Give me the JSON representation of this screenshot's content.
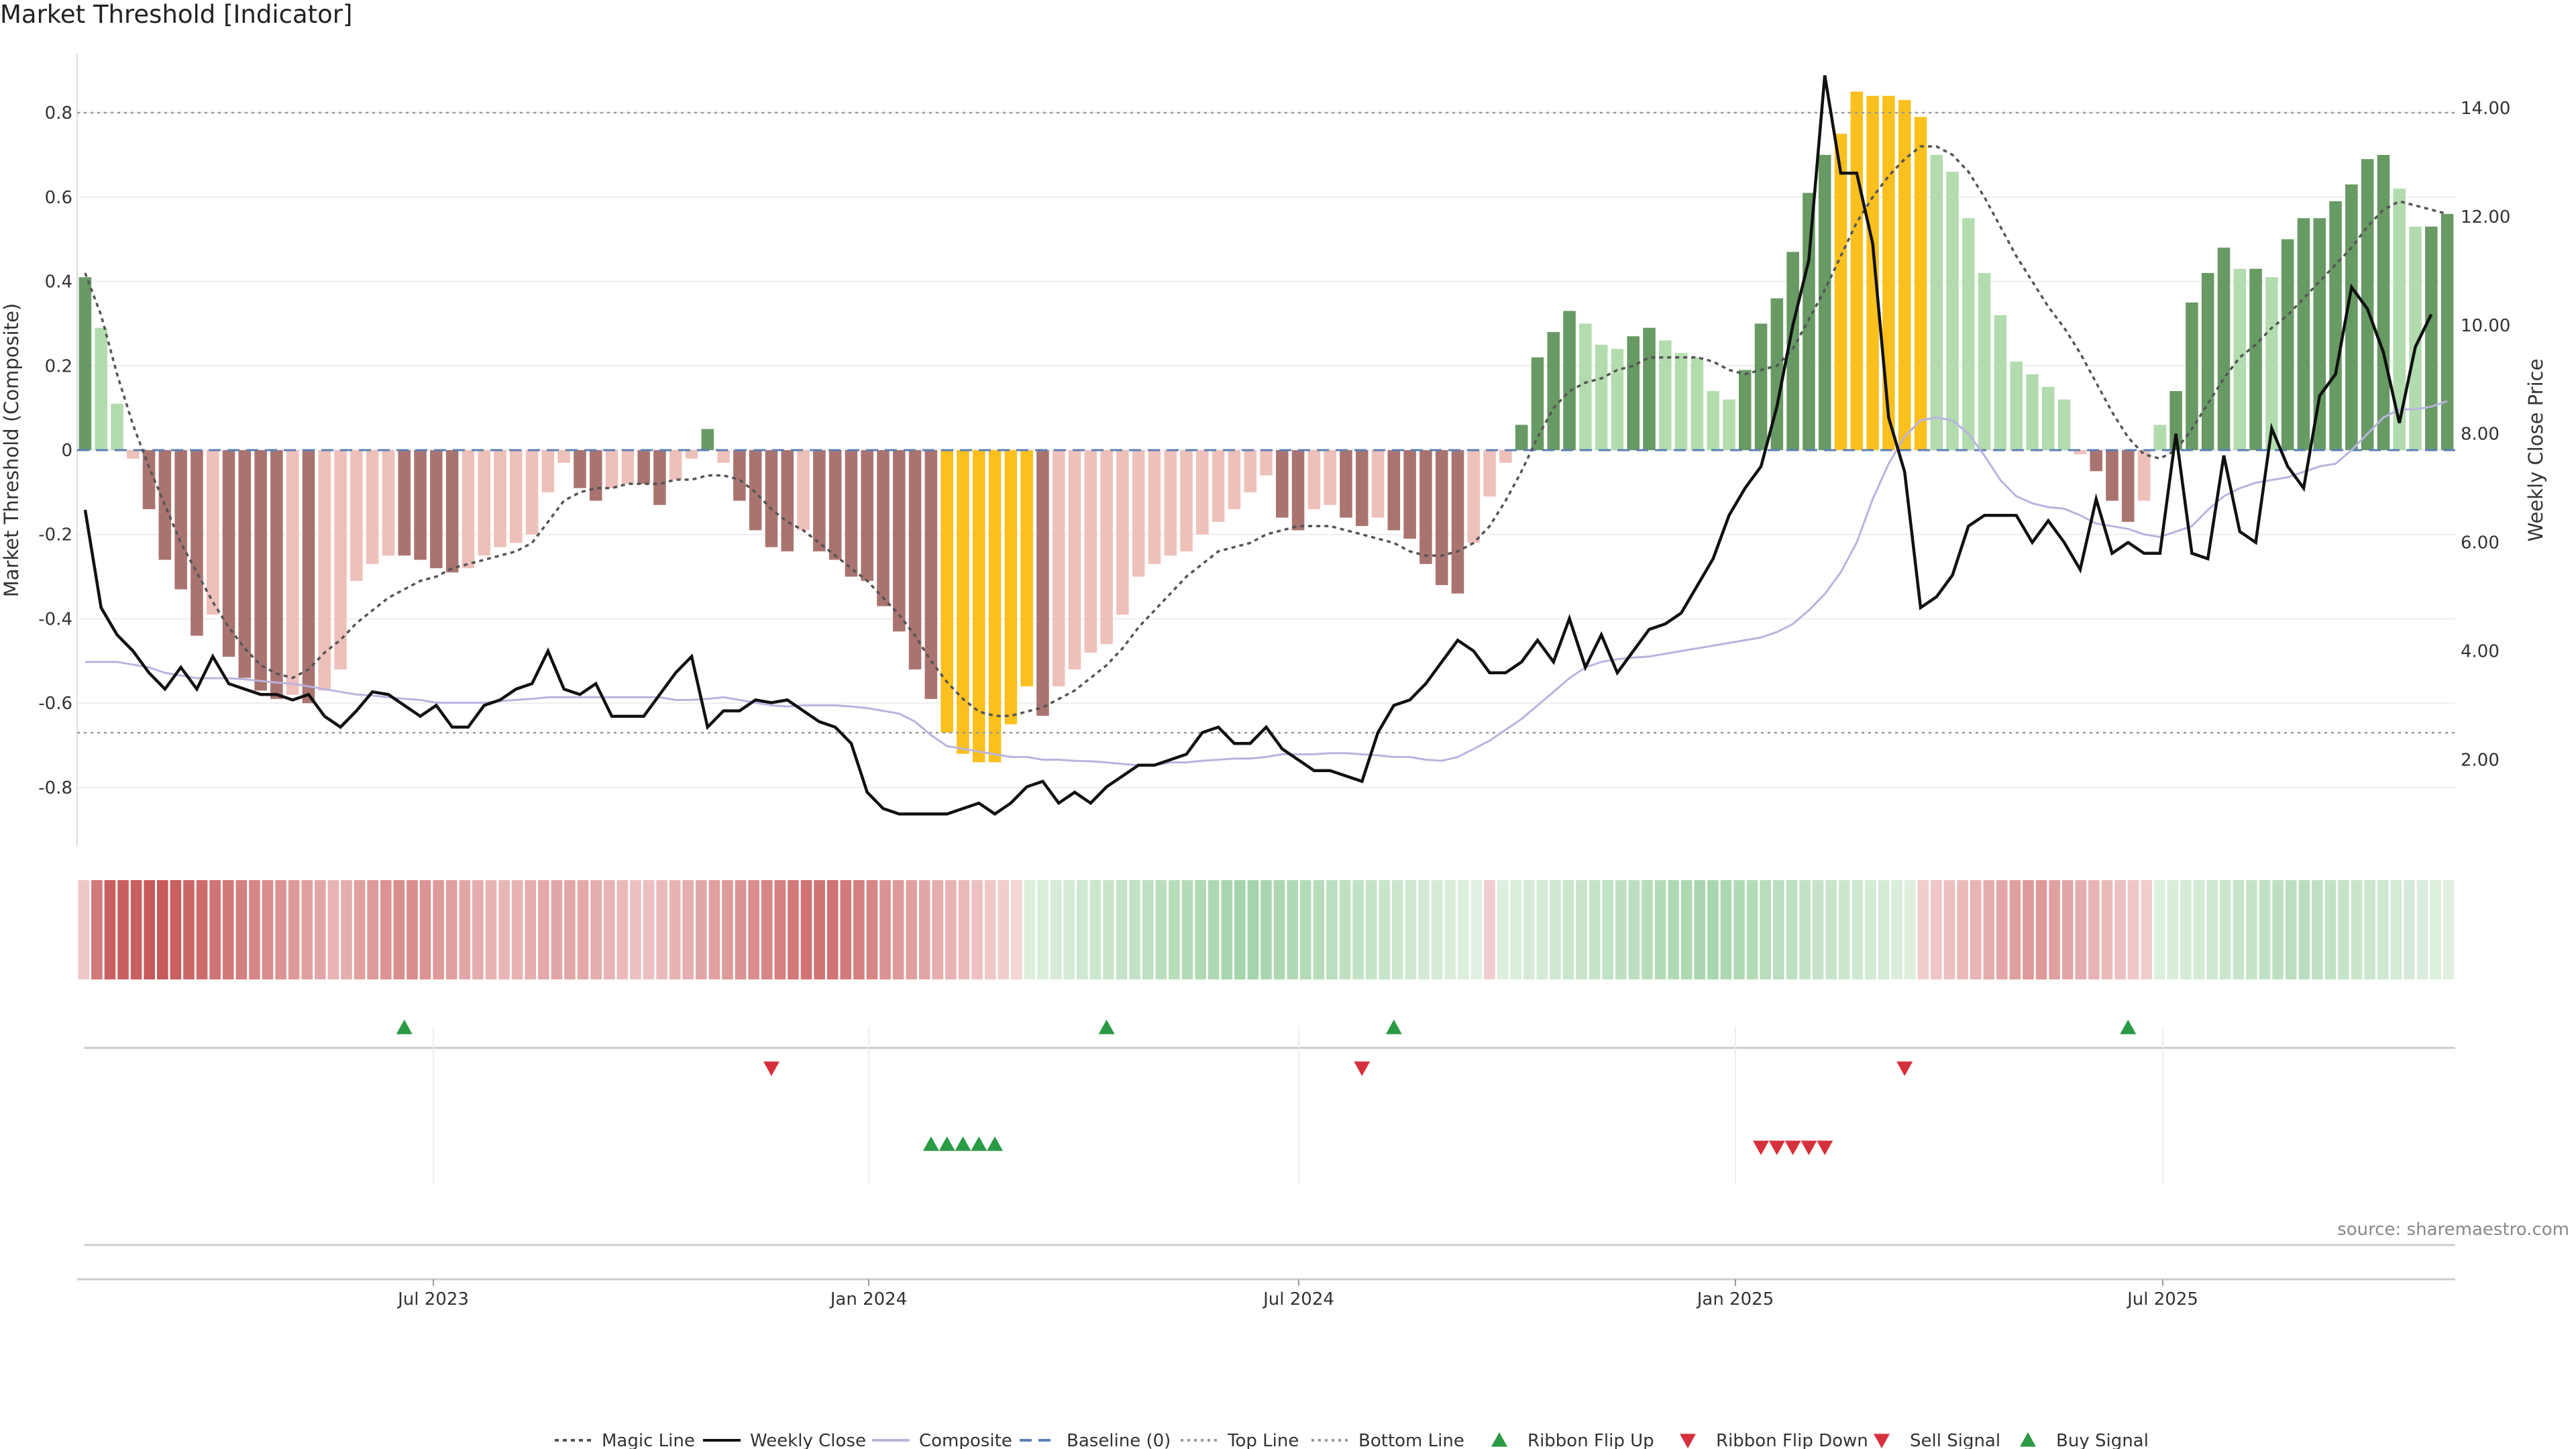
{
  "title": "Market Threshold [Indicator]",
  "source": "source: sharemaestro.com",
  "chart_data": {
    "type": "bar",
    "title": "Market Threshold [Indicator]",
    "ylabel": "Market Threshold (Composite)",
    "y2label": "Weekly Close Price",
    "ylim": [
      -0.94,
      0.94
    ],
    "y2lim": [
      0.4,
      15.0
    ],
    "yticks": [
      "0.8",
      "0.6",
      "0.4",
      "0.2",
      "0",
      "-0.2",
      "-0.4",
      "-0.6",
      "-0.8"
    ],
    "y2ticks": [
      "14.00",
      "12.00",
      "10.00",
      "8.00",
      "6.00",
      "4.00",
      "2.00"
    ],
    "xticks": [
      "Jul 2023",
      "Jan 2024",
      "Jul 2024",
      "Jan 2025",
      "Jul 2025"
    ],
    "top_line": 0.8,
    "bottom_line": -0.67,
    "grid": true,
    "legend_position": "bottom-center",
    "colors": {
      "bear_strong": "#a97470",
      "bear_light": "#eec0ba",
      "bull_strong": "#689a64",
      "bull_light": "#b2dcae",
      "extreme": "#fbc01e",
      "magic": "#555555",
      "close": "#111111",
      "composite": "#b9b3e0",
      "baseline": "#5b7fb5",
      "buy": "#2a9a44",
      "sell": "#d6303d"
    },
    "composite_bars": [
      0.41,
      0.29,
      0.11,
      -0.02,
      -0.14,
      -0.26,
      -0.33,
      -0.44,
      -0.39,
      -0.49,
      -0.54,
      -0.57,
      -0.59,
      -0.58,
      -0.6,
      -0.57,
      -0.52,
      -0.31,
      -0.27,
      -0.25,
      -0.25,
      -0.26,
      -0.28,
      -0.29,
      -0.28,
      -0.25,
      -0.23,
      -0.22,
      -0.2,
      -0.1,
      -0.03,
      -0.09,
      -0.12,
      -0.09,
      -0.08,
      -0.08,
      -0.13,
      -0.07,
      -0.02,
      0.05,
      -0.03,
      -0.12,
      -0.19,
      -0.23,
      -0.24,
      -0.19,
      -0.24,
      -0.26,
      -0.3,
      -0.31,
      -0.37,
      -0.43,
      -0.52,
      -0.59,
      -0.67,
      -0.72,
      -0.74,
      -0.74,
      -0.65,
      -0.56,
      -0.63,
      -0.56,
      -0.52,
      -0.48,
      -0.46,
      -0.39,
      -0.3,
      -0.27,
      -0.25,
      -0.24,
      -0.2,
      -0.17,
      -0.14,
      -0.1,
      -0.06,
      -0.16,
      -0.19,
      -0.14,
      -0.13,
      -0.16,
      -0.18,
      -0.16,
      -0.19,
      -0.21,
      -0.27,
      -0.32,
      -0.34,
      -0.22,
      -0.11,
      -0.03,
      0.06,
      0.22,
      0.28,
      0.33,
      0.3,
      0.25,
      0.24,
      0.27,
      0.29,
      0.26,
      0.23,
      0.22,
      0.14,
      0.12,
      0.19,
      0.3,
      0.36,
      0.47,
      0.61,
      0.7,
      0.75,
      0.85,
      0.84,
      0.84,
      0.83,
      0.79,
      0.7,
      0.66,
      0.55,
      0.42,
      0.32,
      0.21,
      0.18,
      0.15,
      0.12,
      -0.01,
      -0.05,
      -0.12,
      -0.17,
      -0.12,
      0.06,
      0.14,
      0.35,
      0.42,
      0.48,
      0.43,
      0.43,
      0.41,
      0.5,
      0.55,
      0.55,
      0.59,
      0.63,
      0.69,
      0.7,
      0.62,
      0.53,
      0.53,
      0.56
    ],
    "extreme_bars": [
      54,
      55,
      56,
      57,
      58,
      59,
      110,
      111,
      112,
      113,
      114,
      115
    ],
    "magic_line": [
      0.42,
      0.32,
      0.18,
      0.06,
      -0.04,
      -0.13,
      -0.22,
      -0.29,
      -0.36,
      -0.42,
      -0.47,
      -0.51,
      -0.53,
      -0.54,
      -0.52,
      -0.48,
      -0.45,
      -0.41,
      -0.38,
      -0.35,
      -0.33,
      -0.31,
      -0.3,
      -0.28,
      -0.27,
      -0.26,
      -0.25,
      -0.24,
      -0.22,
      -0.17,
      -0.12,
      -0.1,
      -0.09,
      -0.09,
      -0.08,
      -0.08,
      -0.08,
      -0.07,
      -0.07,
      -0.06,
      -0.06,
      -0.07,
      -0.1,
      -0.14,
      -0.17,
      -0.19,
      -0.22,
      -0.25,
      -0.28,
      -0.31,
      -0.35,
      -0.39,
      -0.44,
      -0.5,
      -0.55,
      -0.59,
      -0.62,
      -0.63,
      -0.63,
      -0.62,
      -0.61,
      -0.59,
      -0.57,
      -0.54,
      -0.51,
      -0.47,
      -0.42,
      -0.38,
      -0.34,
      -0.3,
      -0.27,
      -0.24,
      -0.23,
      -0.22,
      -0.2,
      -0.19,
      -0.18,
      -0.18,
      -0.18,
      -0.19,
      -0.2,
      -0.21,
      -0.22,
      -0.24,
      -0.25,
      -0.25,
      -0.24,
      -0.22,
      -0.18,
      -0.12,
      -0.05,
      0.03,
      0.1,
      0.14,
      0.16,
      0.17,
      0.19,
      0.2,
      0.22,
      0.22,
      0.22,
      0.22,
      0.21,
      0.19,
      0.18,
      0.19,
      0.2,
      0.24,
      0.31,
      0.38,
      0.46,
      0.54,
      0.6,
      0.65,
      0.69,
      0.72,
      0.72,
      0.7,
      0.66,
      0.6,
      0.53,
      0.46,
      0.4,
      0.34,
      0.29,
      0.23,
      0.16,
      0.09,
      0.03,
      -0.01,
      -0.02,
      0.0,
      0.05,
      0.11,
      0.17,
      0.22,
      0.25,
      0.29,
      0.32,
      0.36,
      0.4,
      0.44,
      0.48,
      0.53,
      0.57,
      0.59,
      0.58,
      0.57,
      0.56
    ],
    "composite_line": [
      3.8,
      3.8,
      3.8,
      3.75,
      3.7,
      3.6,
      3.55,
      3.5,
      3.5,
      3.5,
      3.48,
      3.45,
      3.42,
      3.4,
      3.35,
      3.3,
      3.25,
      3.2,
      3.18,
      3.15,
      3.12,
      3.1,
      3.05,
      3.05,
      3.05,
      3.05,
      3.08,
      3.1,
      3.12,
      3.15,
      3.15,
      3.15,
      3.15,
      3.15,
      3.15,
      3.15,
      3.15,
      3.1,
      3.1,
      3.12,
      3.15,
      3.1,
      3.05,
      3.0,
      2.98,
      3.0,
      3.0,
      3.0,
      2.98,
      2.95,
      2.9,
      2.85,
      2.7,
      2.45,
      2.25,
      2.2,
      2.15,
      2.1,
      2.05,
      2.05,
      2.0,
      2.0,
      1.98,
      1.97,
      1.95,
      1.92,
      1.9,
      1.9,
      1.95,
      1.95,
      1.98,
      2.0,
      2.02,
      2.02,
      2.05,
      2.1,
      2.1,
      2.1,
      2.12,
      2.12,
      2.1,
      2.08,
      2.05,
      2.05,
      2.0,
      1.98,
      2.05,
      2.2,
      2.35,
      2.55,
      2.75,
      3.0,
      3.25,
      3.5,
      3.7,
      3.8,
      3.85,
      3.88,
      3.9,
      3.95,
      4.0,
      4.05,
      4.1,
      4.15,
      4.2,
      4.25,
      4.35,
      4.5,
      4.75,
      5.05,
      5.45,
      6.0,
      6.8,
      7.45,
      7.95,
      8.25,
      8.3,
      8.25,
      8.0,
      7.6,
      7.15,
      6.85,
      6.72,
      6.65,
      6.62,
      6.5,
      6.35,
      6.3,
      6.25,
      6.15,
      6.1,
      6.2,
      6.3,
      6.6,
      6.85,
      7.0,
      7.1,
      7.15,
      7.2,
      7.3,
      7.4,
      7.45,
      7.7,
      8.0,
      8.3,
      8.45,
      8.45,
      8.5,
      8.6
    ],
    "weekly_close": [
      6.6,
      4.8,
      4.3,
      4.0,
      3.6,
      3.3,
      3.7,
      3.3,
      3.9,
      3.4,
      3.3,
      3.2,
      3.2,
      3.1,
      3.2,
      2.8,
      2.6,
      2.9,
      3.25,
      3.2,
      3.0,
      2.8,
      3.0,
      2.6,
      2.6,
      3.0,
      3.1,
      3.3,
      3.4,
      4.0,
      3.3,
      3.2,
      3.4,
      2.8,
      2.8,
      2.8,
      3.2,
      3.6,
      3.9,
      2.6,
      2.9,
      2.9,
      3.1,
      3.05,
      3.1,
      2.9,
      2.7,
      2.6,
      2.3,
      1.4,
      1.1,
      1.0,
      1.0,
      1.0,
      1.0,
      1.1,
      1.2,
      1.0,
      1.2,
      1.5,
      1.6,
      1.2,
      1.4,
      1.2,
      1.5,
      1.7,
      1.9,
      1.9,
      2.0,
      2.1,
      2.5,
      2.6,
      2.3,
      2.3,
      2.6,
      2.2,
      2.0,
      1.8,
      1.8,
      1.7,
      1.6,
      2.5,
      3.0,
      3.1,
      3.4,
      3.8,
      4.2,
      4.0,
      3.6,
      3.6,
      3.8,
      4.2,
      3.8,
      4.6,
      3.7,
      4.3,
      3.6,
      4.0,
      4.4,
      4.5,
      4.7,
      5.2,
      5.7,
      6.5,
      7.0,
      7.4,
      8.5,
      10.0,
      11.2,
      14.6,
      12.8,
      12.8,
      11.5,
      8.3,
      7.3,
      4.8,
      5.0,
      5.4,
      6.3,
      6.5,
      6.5,
      6.5,
      6.0,
      6.4,
      6.0,
      5.5,
      6.8,
      5.8,
      6.0,
      5.8,
      5.8,
      8.0,
      5.8,
      5.7,
      7.6,
      6.2,
      6.0,
      8.1,
      7.4,
      7.0,
      8.7,
      9.1,
      10.7,
      10.3,
      9.5,
      8.2,
      9.6,
      10.2
    ],
    "ribbon": [
      -0.15,
      -0.75,
      -0.95,
      -0.95,
      -0.95,
      -1.0,
      -1.0,
      -0.95,
      -0.9,
      -0.85,
      -0.8,
      -0.75,
      -0.7,
      -0.65,
      -0.6,
      -0.55,
      -0.5,
      -0.45,
      -0.4,
      -0.3,
      -0.35,
      -0.45,
      -0.5,
      -0.55,
      -0.6,
      -0.6,
      -0.55,
      -0.5,
      -0.45,
      -0.4,
      -0.35,
      -0.3,
      -0.28,
      -0.3,
      -0.35,
      -0.38,
      -0.4,
      -0.4,
      -0.38,
      -0.35,
      -0.3,
      -0.25,
      -0.2,
      -0.2,
      -0.25,
      -0.3,
      -0.35,
      -0.4,
      -0.45,
      -0.5,
      -0.55,
      -0.6,
      -0.65,
      -0.7,
      -0.75,
      -0.8,
      -0.8,
      -0.8,
      -0.75,
      -0.7,
      -0.65,
      -0.55,
      -0.5,
      -0.45,
      -0.4,
      -0.35,
      -0.3,
      -0.25,
      -0.2,
      -0.15,
      -0.1,
      -0.05,
      0.1,
      0.15,
      0.2,
      0.25,
      0.3,
      0.35,
      0.4,
      0.45,
      0.5,
      0.55,
      0.6,
      0.65,
      0.7,
      0.75,
      0.8,
      0.85,
      0.9,
      0.9,
      0.85,
      0.8,
      0.75,
      0.7,
      0.65,
      0.6,
      0.55,
      0.5,
      0.45,
      0.4,
      0.35,
      0.3,
      0.25,
      0.2,
      0.15,
      0.1,
      0.05,
      -0.1,
      0.1,
      0.15,
      0.2,
      0.25,
      0.3,
      0.35,
      0.4,
      0.45,
      0.5,
      0.55,
      0.6,
      0.65,
      0.7,
      0.75,
      0.8,
      0.85,
      0.85,
      0.8,
      0.75,
      0.7,
      0.65,
      0.6,
      0.55,
      0.5,
      0.45,
      0.4,
      0.35,
      0.3,
      0.25,
      0.2,
      0.15,
      0.1,
      -0.1,
      -0.15,
      -0.2,
      -0.25,
      -0.3,
      -0.35,
      -0.4,
      -0.45,
      -0.5,
      -0.5,
      -0.45,
      -0.4,
      -0.35,
      -0.3,
      -0.25,
      -0.2,
      -0.15,
      -0.1,
      0.1,
      0.15,
      0.2,
      0.25,
      0.3,
      0.35,
      0.4,
      0.45,
      0.5,
      0.55,
      0.6,
      0.6,
      0.55,
      0.5,
      0.45,
      0.4,
      0.35,
      0.3,
      0.25,
      0.2,
      0.15,
      0.1,
      0.05
    ],
    "ribbon_flip_up": [
      20,
      64,
      82,
      128
    ],
    "ribbon_flip_down": [
      43,
      80,
      114
    ],
    "buy_signal": [
      53,
      54,
      55,
      56,
      57
    ],
    "sell_signal": [
      105,
      106,
      107,
      108,
      109
    ],
    "legend": [
      "Magic Line",
      "Weekly Close",
      "Composite",
      "Baseline (0)",
      "Top Line",
      "Bottom Line",
      "Ribbon Flip Up",
      "Ribbon Flip Down",
      "Sell Signal",
      "Buy Signal"
    ]
  }
}
